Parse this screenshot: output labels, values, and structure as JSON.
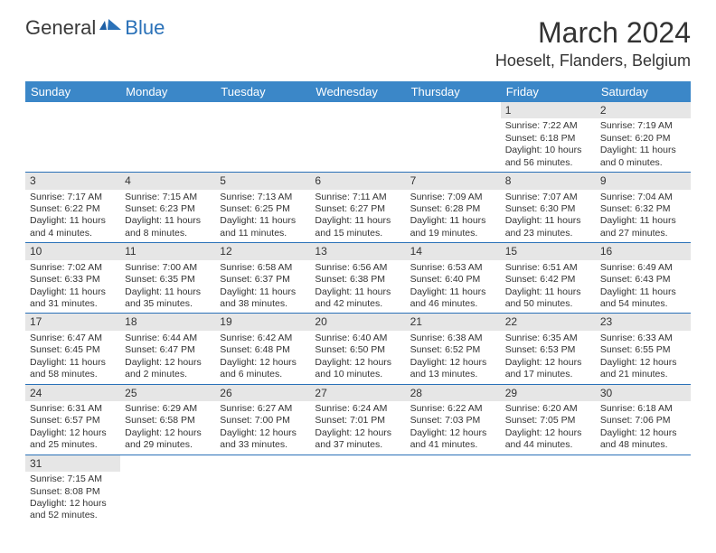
{
  "brand": {
    "general": "General",
    "blue": "Blue"
  },
  "title": "March 2024",
  "location": "Hoeselt, Flanders, Belgium",
  "header_color": "#3b87c8",
  "row_border_color": "#2a71b8",
  "day_num_bg": "#e6e6e6",
  "weekdays": [
    "Sunday",
    "Monday",
    "Tuesday",
    "Wednesday",
    "Thursday",
    "Friday",
    "Saturday"
  ],
  "weeks": [
    [
      null,
      null,
      null,
      null,
      null,
      {
        "n": "1",
        "sr": "7:22 AM",
        "ss": "6:18 PM",
        "dh": "10",
        "dm": "56"
      },
      {
        "n": "2",
        "sr": "7:19 AM",
        "ss": "6:20 PM",
        "dh": "11",
        "dm": "0"
      }
    ],
    [
      {
        "n": "3",
        "sr": "7:17 AM",
        "ss": "6:22 PM",
        "dh": "11",
        "dm": "4"
      },
      {
        "n": "4",
        "sr": "7:15 AM",
        "ss": "6:23 PM",
        "dh": "11",
        "dm": "8"
      },
      {
        "n": "5",
        "sr": "7:13 AM",
        "ss": "6:25 PM",
        "dh": "11",
        "dm": "11"
      },
      {
        "n": "6",
        "sr": "7:11 AM",
        "ss": "6:27 PM",
        "dh": "11",
        "dm": "15"
      },
      {
        "n": "7",
        "sr": "7:09 AM",
        "ss": "6:28 PM",
        "dh": "11",
        "dm": "19"
      },
      {
        "n": "8",
        "sr": "7:07 AM",
        "ss": "6:30 PM",
        "dh": "11",
        "dm": "23"
      },
      {
        "n": "9",
        "sr": "7:04 AM",
        "ss": "6:32 PM",
        "dh": "11",
        "dm": "27"
      }
    ],
    [
      {
        "n": "10",
        "sr": "7:02 AM",
        "ss": "6:33 PM",
        "dh": "11",
        "dm": "31"
      },
      {
        "n": "11",
        "sr": "7:00 AM",
        "ss": "6:35 PM",
        "dh": "11",
        "dm": "35"
      },
      {
        "n": "12",
        "sr": "6:58 AM",
        "ss": "6:37 PM",
        "dh": "11",
        "dm": "38"
      },
      {
        "n": "13",
        "sr": "6:56 AM",
        "ss": "6:38 PM",
        "dh": "11",
        "dm": "42"
      },
      {
        "n": "14",
        "sr": "6:53 AM",
        "ss": "6:40 PM",
        "dh": "11",
        "dm": "46"
      },
      {
        "n": "15",
        "sr": "6:51 AM",
        "ss": "6:42 PM",
        "dh": "11",
        "dm": "50"
      },
      {
        "n": "16",
        "sr": "6:49 AM",
        "ss": "6:43 PM",
        "dh": "11",
        "dm": "54"
      }
    ],
    [
      {
        "n": "17",
        "sr": "6:47 AM",
        "ss": "6:45 PM",
        "dh": "11",
        "dm": "58"
      },
      {
        "n": "18",
        "sr": "6:44 AM",
        "ss": "6:47 PM",
        "dh": "12",
        "dm": "2"
      },
      {
        "n": "19",
        "sr": "6:42 AM",
        "ss": "6:48 PM",
        "dh": "12",
        "dm": "6"
      },
      {
        "n": "20",
        "sr": "6:40 AM",
        "ss": "6:50 PM",
        "dh": "12",
        "dm": "10"
      },
      {
        "n": "21",
        "sr": "6:38 AM",
        "ss": "6:52 PM",
        "dh": "12",
        "dm": "13"
      },
      {
        "n": "22",
        "sr": "6:35 AM",
        "ss": "6:53 PM",
        "dh": "12",
        "dm": "17"
      },
      {
        "n": "23",
        "sr": "6:33 AM",
        "ss": "6:55 PM",
        "dh": "12",
        "dm": "21"
      }
    ],
    [
      {
        "n": "24",
        "sr": "6:31 AM",
        "ss": "6:57 PM",
        "dh": "12",
        "dm": "25"
      },
      {
        "n": "25",
        "sr": "6:29 AM",
        "ss": "6:58 PM",
        "dh": "12",
        "dm": "29"
      },
      {
        "n": "26",
        "sr": "6:27 AM",
        "ss": "7:00 PM",
        "dh": "12",
        "dm": "33"
      },
      {
        "n": "27",
        "sr": "6:24 AM",
        "ss": "7:01 PM",
        "dh": "12",
        "dm": "37"
      },
      {
        "n": "28",
        "sr": "6:22 AM",
        "ss": "7:03 PM",
        "dh": "12",
        "dm": "41"
      },
      {
        "n": "29",
        "sr": "6:20 AM",
        "ss": "7:05 PM",
        "dh": "12",
        "dm": "44"
      },
      {
        "n": "30",
        "sr": "6:18 AM",
        "ss": "7:06 PM",
        "dh": "12",
        "dm": "48"
      }
    ],
    [
      {
        "n": "31",
        "sr": "7:15 AM",
        "ss": "8:08 PM",
        "dh": "12",
        "dm": "52"
      },
      null,
      null,
      null,
      null,
      null,
      null
    ]
  ],
  "labels": {
    "sunrise": "Sunrise:",
    "sunset": "Sunset:",
    "daylight_prefix": "Daylight:",
    "hours": "hours",
    "and": "and",
    "minutes": "minutes."
  }
}
